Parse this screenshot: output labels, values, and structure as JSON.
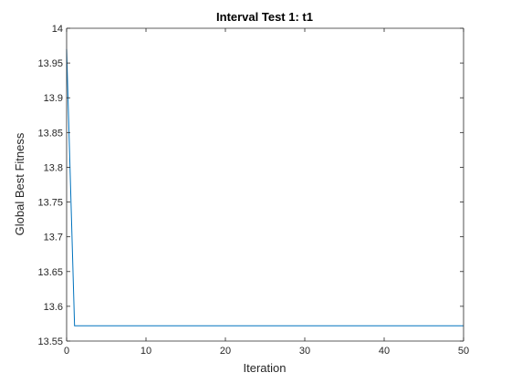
{
  "chart_data": {
    "type": "line",
    "title": "Interval Test 1: t1",
    "xlabel": "Iteration",
    "ylabel": "Global Best Fitness",
    "xlim": [
      0,
      50
    ],
    "ylim": [
      13.55,
      14
    ],
    "xticks": [
      0,
      10,
      20,
      30,
      40,
      50
    ],
    "xtick_labels": [
      "0",
      "10",
      "20",
      "30",
      "40",
      "50"
    ],
    "yticks": [
      13.55,
      13.6,
      13.65,
      13.7,
      13.75,
      13.8,
      13.85,
      13.9,
      13.95,
      14
    ],
    "ytick_labels": [
      "13.55",
      "13.6",
      "13.65",
      "13.7",
      "13.75",
      "13.8",
      "13.85",
      "13.9",
      "13.95",
      "14"
    ],
    "grid": false,
    "series": [
      {
        "color": "#0072BD",
        "x": [
          0,
          1,
          2,
          3,
          4,
          5,
          6,
          7,
          8,
          9,
          10,
          11,
          12,
          13,
          14,
          15,
          16,
          17,
          18,
          19,
          20,
          21,
          22,
          23,
          24,
          25,
          26,
          27,
          28,
          29,
          30,
          31,
          32,
          33,
          34,
          35,
          36,
          37,
          38,
          39,
          40,
          41,
          42,
          43,
          44,
          45,
          46,
          47,
          48,
          49,
          50
        ],
        "y": [
          13.97,
          13.572,
          13.572,
          13.572,
          13.572,
          13.572,
          13.572,
          13.572,
          13.572,
          13.572,
          13.572,
          13.572,
          13.572,
          13.572,
          13.572,
          13.572,
          13.572,
          13.572,
          13.572,
          13.572,
          13.572,
          13.572,
          13.572,
          13.572,
          13.572,
          13.572,
          13.572,
          13.572,
          13.572,
          13.572,
          13.572,
          13.572,
          13.572,
          13.572,
          13.572,
          13.572,
          13.572,
          13.572,
          13.572,
          13.572,
          13.572,
          13.572,
          13.572,
          13.572,
          13.572,
          13.572,
          13.572,
          13.572,
          13.572,
          13.572,
          13.572
        ]
      }
    ]
  }
}
